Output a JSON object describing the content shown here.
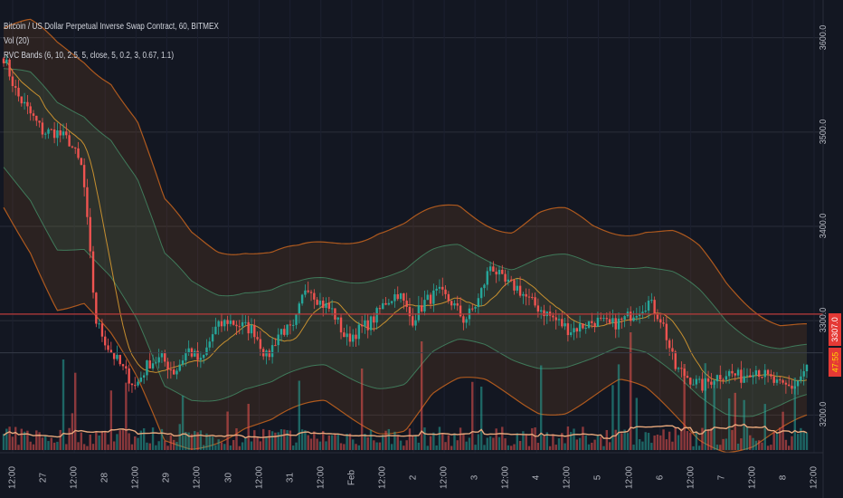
{
  "legend": {
    "symbol": "Bitcoin / US Dollar Perpetual Inverse Swap Contract, 60, BITMEX",
    "volume": "Vol (20)",
    "bands": "RVC Bands (6, 10, 2.5, 5, close, 5, 0.2, 3, 0.67, 1.1)"
  },
  "colors": {
    "background": "#131722",
    "up_candle": "#26a69a",
    "down_candle": "#ef5350",
    "outer_band": "#d2691e",
    "inner_band": "#4caf7d",
    "basis": "#e0a030",
    "volume_ma": "#e8a87c",
    "grid": "#2a2e39",
    "level_line": "#b03a3a",
    "price_badge": "#e53935",
    "countdown_badge": "#ffd600"
  },
  "price_axis": {
    "ticks": [
      "3600.0",
      "3500.0",
      "3400.0",
      "3300.0",
      "3200.0"
    ],
    "current_price": "3307.0",
    "countdown": "47:55"
  },
  "time_axis": {
    "ticks": [
      "12:00",
      "27",
      "12:00",
      "28",
      "12:00",
      "29",
      "12:00",
      "30",
      "12:00",
      "31",
      "12:00",
      "Feb",
      "12:00",
      "2",
      "12:00",
      "3",
      "12:00",
      "4",
      "12:00",
      "5",
      "12:00",
      "6",
      "12:00",
      "7",
      "12:00",
      "8",
      "12:00"
    ]
  },
  "chart_data": {
    "type": "candlestick",
    "series": [
      {
        "name": "Bitcoin / US Dollar Perpetual Inverse Swap Contract, 60, BITMEX"
      },
      {
        "name": "Vol (20)"
      },
      {
        "name": "RVC Bands (6, 10, 2.5, 5, close, 5, 0.2, 3, 0.67, 1.1)"
      }
    ],
    "x": [
      "12:00",
      "27",
      "12:00",
      "28",
      "12:00",
      "29",
      "12:00",
      "30",
      "12:00",
      "31",
      "12:00",
      "Feb",
      "12:00",
      "2",
      "12:00",
      "3",
      "12:00",
      "4",
      "12:00",
      "5",
      "12:00",
      "6",
      "12:00",
      "7",
      "12:00",
      "8",
      "12:00"
    ],
    "close_anchors": [
      3580,
      3540,
      3520,
      3500,
      3500,
      3490,
      3460,
      3300,
      3270,
      3250,
      3230,
      3255,
      3260,
      3245,
      3270,
      3255,
      3290,
      3300,
      3295,
      3290,
      3260,
      3290,
      3290,
      3340,
      3320,
      3310,
      3280,
      3290,
      3300,
      3320,
      3330,
      3300,
      3320,
      3330,
      3320,
      3300,
      3320,
      3360,
      3340,
      3335,
      3320,
      3310,
      3300,
      3290,
      3295,
      3300,
      3295,
      3300,
      3310,
      3320,
      3300,
      3250,
      3240,
      3230,
      3240,
      3245,
      3240,
      3250,
      3240,
      3230,
      3230,
      3250
    ],
    "outer_upper_anchors": [
      3610,
      3610,
      3590,
      3580,
      3560,
      3510,
      3420,
      3390,
      3380,
      3380,
      3370,
      3370,
      3380,
      3390,
      3400,
      3400,
      3410,
      3420,
      3410,
      3400,
      3410,
      3410,
      3400,
      3400,
      3400,
      3390,
      3370,
      3340,
      3320,
      3300,
      3290
    ],
    "outer_lower_anchors": [
      3420,
      3380,
      3320,
      3320,
      3280,
      3230,
      3170,
      3170,
      3180,
      3190,
      3190,
      3200,
      3210,
      3200,
      3190,
      3190,
      3220,
      3230,
      3230,
      3220,
      3210,
      3210,
      3220,
      3230,
      3220,
      3200,
      3180,
      3170,
      3170,
      3180,
      3190
    ],
    "ylim": [
      3160,
      3640
    ],
    "current_price": 3307.0,
    "horizontal_levels": [
      3307,
      3266
    ],
    "grid": true
  }
}
